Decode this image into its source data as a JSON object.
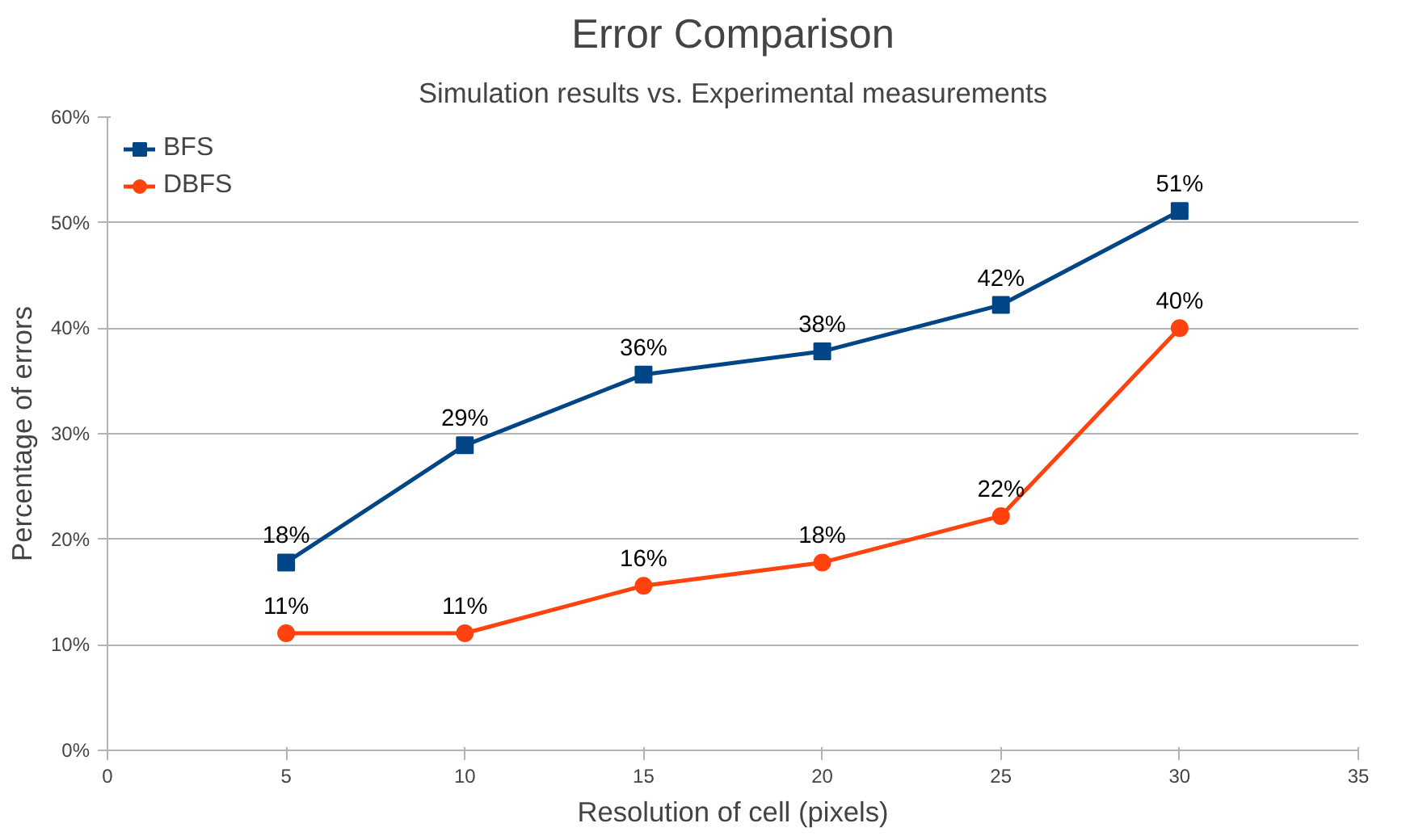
{
  "chart_data": {
    "type": "line",
    "title": "Error Comparison",
    "subtitle": "Simulation results vs. Experimental measurements",
    "xlabel": "Resolution of cell (pixels)",
    "ylabel": "Percentage of errors",
    "x": [
      5,
      10,
      15,
      20,
      25,
      30
    ],
    "series": [
      {
        "name": "BFS",
        "color": "#004586",
        "marker": "square",
        "values": [
          17.8,
          28.9,
          35.6,
          37.8,
          42.2,
          51.1
        ],
        "value_labels": [
          "18%",
          "29%",
          "36%",
          "38%",
          "42%",
          "51%"
        ]
      },
      {
        "name": "DBFS",
        "color": "#ff420e",
        "marker": "circle",
        "values": [
          11.1,
          11.1,
          15.6,
          17.8,
          22.2,
          40.0
        ],
        "value_labels": [
          "11%",
          "11%",
          "16%",
          "18%",
          "22%",
          "40%"
        ]
      }
    ],
    "xlim": [
      0,
      35
    ],
    "xticks": [
      0,
      5,
      10,
      15,
      20,
      25,
      30,
      35
    ],
    "ylim": [
      0,
      60
    ],
    "yticks": [
      {
        "value": 0,
        "label": "0%"
      },
      {
        "value": 10,
        "label": "10%"
      },
      {
        "value": 20,
        "label": "20%"
      },
      {
        "value": 30,
        "label": "30%"
      },
      {
        "value": 40,
        "label": "40%"
      },
      {
        "value": 50,
        "label": "50%"
      },
      {
        "value": 60,
        "label": "60%"
      }
    ],
    "grid": "y",
    "legend": "top left",
    "line_style": "solid"
  }
}
